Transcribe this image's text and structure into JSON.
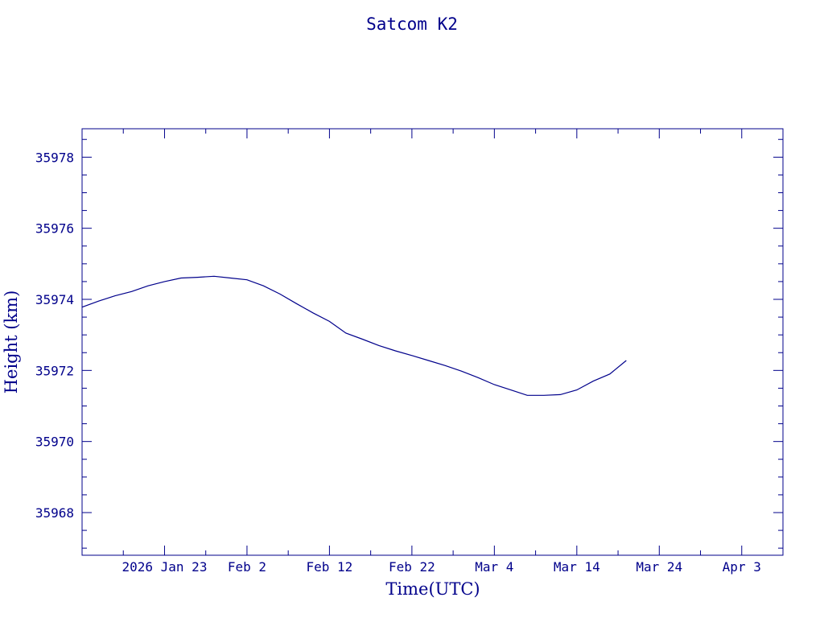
{
  "chart_data": {
    "type": "line",
    "title": "Satcom K2",
    "xlabel": "Time(UTC)",
    "ylabel": "Height (km)",
    "xlim": [
      "2026-01-13",
      "2026-04-08"
    ],
    "ylim": [
      35966.8,
      35978.8
    ],
    "x_ticks": [
      {
        "date": "2026-01-23",
        "label": "2026 Jan 23"
      },
      {
        "date": "2026-02-02",
        "label": "Feb  2"
      },
      {
        "date": "2026-02-12",
        "label": "Feb 12"
      },
      {
        "date": "2026-02-22",
        "label": "Feb 22"
      },
      {
        "date": "2026-03-04",
        "label": "Mar  4"
      },
      {
        "date": "2026-03-14",
        "label": "Mar 14"
      },
      {
        "date": "2026-03-24",
        "label": "Mar 24"
      },
      {
        "date": "2026-04-03",
        "label": "Apr  3"
      }
    ],
    "y_ticks": [
      35968,
      35970,
      35972,
      35974,
      35976,
      35978
    ],
    "grid": false,
    "series": [
      {
        "x": [
          "2026-01-13",
          "2026-01-15",
          "2026-01-17",
          "2026-01-19",
          "2026-01-21",
          "2026-01-23",
          "2026-01-25",
          "2026-01-27",
          "2026-01-29",
          "2026-01-31",
          "2026-02-02",
          "2026-02-04",
          "2026-02-06",
          "2026-02-08",
          "2026-02-10",
          "2026-02-12",
          "2026-02-14",
          "2026-02-16",
          "2026-02-18",
          "2026-02-20",
          "2026-02-22",
          "2026-02-24",
          "2026-02-26",
          "2026-02-28",
          "2026-03-02",
          "2026-03-04",
          "2026-03-06",
          "2026-03-08",
          "2026-03-10",
          "2026-03-12",
          "2026-03-14",
          "2026-03-16",
          "2026-03-18",
          "2026-03-20"
        ],
        "y": [
          35973.78,
          35973.95,
          35974.1,
          35974.22,
          35974.38,
          35974.5,
          35974.6,
          35974.62,
          35974.65,
          35974.6,
          35974.55,
          35974.38,
          35974.15,
          35973.88,
          35973.62,
          35973.38,
          35973.05,
          35972.88,
          35972.7,
          35972.55,
          35972.42,
          35972.28,
          35972.14,
          35971.98,
          35971.8,
          35971.6,
          35971.45,
          35971.3,
          35971.3,
          35971.32,
          35971.45,
          35971.7,
          35971.9,
          35972.28
        ]
      }
    ]
  }
}
